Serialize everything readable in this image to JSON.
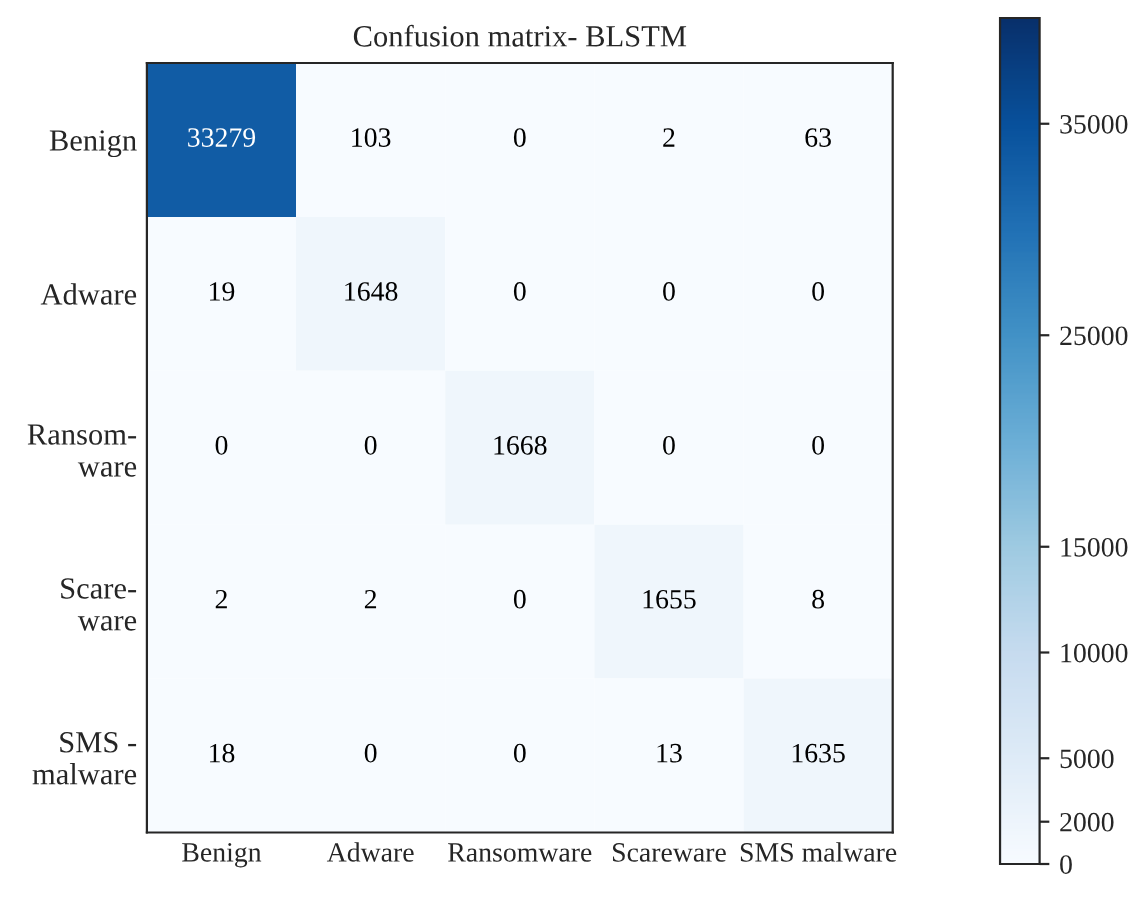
{
  "chart_data": {
    "type": "heatmap",
    "title": "Confusion matrix- BLSTM",
    "categories": [
      "Benign",
      "Adware",
      "Ransomware",
      "Scareware",
      "SMS malware"
    ],
    "y_categories": [
      "Benign",
      "Adware",
      "Ransom-\nware",
      "Scare-\nware",
      "SMS -\nmalware"
    ],
    "cells": [
      [
        33279,
        103,
        0,
        2,
        63
      ],
      [
        19,
        1648,
        0,
        0,
        0
      ],
      [
        0,
        0,
        1668,
        0,
        0
      ],
      [
        2,
        2,
        0,
        1655,
        8
      ],
      [
        18,
        0,
        0,
        13,
        1635
      ]
    ],
    "data_labels": true,
    "clim": [
      0,
      40000
    ],
    "cticks": [
      0,
      2000,
      5000,
      10000,
      15000,
      25000,
      35000
    ]
  }
}
